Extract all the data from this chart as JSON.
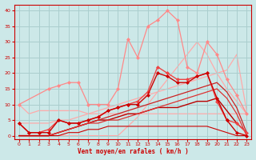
{
  "background_color": "#cce8e8",
  "grid_color": "#aacece",
  "xlabel": "Vent moyen/en rafales ( km/h )",
  "xlabel_color": "#cc0000",
  "tick_color": "#cc0000",
  "ylim": [
    -1,
    42
  ],
  "xlim": [
    -0.5,
    23.5
  ],
  "yticks": [
    0,
    5,
    10,
    15,
    20,
    25,
    30,
    35,
    40
  ],
  "xticks": [
    0,
    1,
    2,
    3,
    4,
    5,
    6,
    7,
    8,
    9,
    10,
    11,
    12,
    13,
    14,
    15,
    16,
    17,
    18,
    19,
    20,
    21,
    22,
    23
  ],
  "series": [
    {
      "x": [
        0,
        1,
        2,
        3,
        4,
        5,
        6,
        7,
        8,
        9,
        10,
        11,
        12,
        13,
        14,
        15,
        16,
        17,
        18,
        19,
        20,
        21,
        22,
        23
      ],
      "y": [
        10,
        7,
        8,
        8,
        8,
        8,
        8,
        7,
        7,
        7,
        7,
        7,
        7,
        7,
        7,
        7,
        7,
        7,
        7,
        7,
        7,
        7,
        7,
        7
      ],
      "color": "#ffaaaa",
      "marker": null,
      "linewidth": 0.9,
      "zorder": 1
    },
    {
      "x": [
        0,
        1,
        2,
        3,
        4,
        5,
        6,
        7,
        8,
        9,
        10,
        11,
        12,
        13,
        14,
        15,
        16,
        17,
        18,
        19,
        20,
        21,
        22,
        23
      ],
      "y": [
        4,
        4,
        4,
        4,
        5,
        5,
        6,
        7,
        8,
        9,
        10,
        11,
        12,
        13,
        14,
        15,
        16,
        17,
        18,
        19,
        20,
        21,
        26,
        8
      ],
      "color": "#ffaaaa",
      "marker": null,
      "linewidth": 0.9,
      "zorder": 1
    },
    {
      "x": [
        0,
        3,
        4,
        5,
        6,
        7,
        8,
        9,
        10,
        11,
        12,
        13,
        14,
        15,
        16,
        17,
        18,
        19,
        20,
        21,
        22,
        23
      ],
      "y": [
        0,
        0,
        0,
        0,
        0,
        0,
        0,
        0,
        0,
        3,
        6,
        10,
        14,
        18,
        22,
        26,
        30,
        26,
        20,
        15,
        11,
        7
      ],
      "color": "#ffaaaa",
      "marker": null,
      "linewidth": 0.9,
      "zorder": 1
    },
    {
      "x": [
        0,
        3,
        4,
        5,
        6,
        7,
        8,
        9,
        10,
        11,
        12,
        13,
        14,
        15,
        16,
        17,
        18,
        19,
        20,
        21,
        22,
        23
      ],
      "y": [
        10,
        15,
        16,
        17,
        17,
        10,
        10,
        10,
        15,
        31,
        25,
        35,
        37,
        40,
        37,
        22,
        20,
        30,
        26,
        18,
        13,
        7
      ],
      "color": "#ff8888",
      "marker": "D",
      "markersize": 2.0,
      "linewidth": 0.9,
      "zorder": 3
    },
    {
      "x": [
        0,
        1,
        2,
        3,
        4,
        5,
        6,
        7,
        8,
        9,
        10,
        11,
        12,
        13,
        14,
        15,
        16,
        17,
        18,
        19,
        20,
        21,
        22,
        23
      ],
      "y": [
        4,
        1,
        1,
        2,
        5,
        4,
        4,
        5,
        6,
        8,
        9,
        10,
        11,
        14,
        22,
        20,
        18,
        18,
        19,
        20,
        11,
        5,
        4,
        1
      ],
      "color": "#ee4444",
      "marker": "D",
      "markersize": 2.0,
      "linewidth": 1.0,
      "zorder": 4
    },
    {
      "x": [
        0,
        1,
        2,
        3,
        4,
        5,
        6,
        7,
        8,
        9,
        10,
        11,
        12,
        13,
        14,
        15,
        16,
        17,
        18,
        19,
        20,
        21,
        22,
        23
      ],
      "y": [
        4,
        1,
        1,
        1,
        5,
        4,
        4,
        5,
        6,
        8,
        9,
        10,
        10,
        13,
        20,
        19,
        17,
        17,
        19,
        20,
        12,
        5,
        1,
        0
      ],
      "color": "#cc0000",
      "marker": "D",
      "markersize": 2.0,
      "linewidth": 1.0,
      "zorder": 4
    },
    {
      "x": [
        0,
        1,
        2,
        3,
        4,
        5,
        6,
        7,
        8,
        9,
        10,
        11,
        12,
        13,
        14,
        15,
        16,
        17,
        18,
        19,
        20,
        21,
        22,
        23
      ],
      "y": [
        0,
        0,
        0,
        0,
        1,
        2,
        3,
        4,
        5,
        5,
        6,
        7,
        7,
        8,
        9,
        9,
        9,
        10,
        11,
        11,
        12,
        8,
        4,
        1
      ],
      "color": "#bb0000",
      "marker": null,
      "linewidth": 1.0,
      "zorder": 2
    },
    {
      "x": [
        0,
        1,
        2,
        3,
        4,
        5,
        6,
        7,
        8,
        9,
        10,
        11,
        12,
        13,
        14,
        15,
        16,
        17,
        18,
        19,
        20,
        21,
        22,
        23
      ],
      "y": [
        0,
        0,
        0,
        0,
        1,
        2,
        3,
        4,
        5,
        6,
        7,
        8,
        9,
        10,
        11,
        12,
        13,
        14,
        15,
        16,
        17,
        14,
        9,
        1
      ],
      "color": "#cc2222",
      "marker": null,
      "linewidth": 0.9,
      "zorder": 2
    },
    {
      "x": [
        0,
        1,
        2,
        3,
        4,
        5,
        6,
        7,
        8,
        9,
        10,
        11,
        12,
        13,
        14,
        15,
        16,
        17,
        18,
        19,
        20,
        21,
        22,
        23
      ],
      "y": [
        0,
        0,
        0,
        0,
        1,
        2,
        3,
        4,
        4,
        5,
        5,
        6,
        7,
        8,
        9,
        10,
        11,
        12,
        13,
        14,
        15,
        12,
        7,
        0
      ],
      "color": "#dd3333",
      "marker": null,
      "linewidth": 0.9,
      "zorder": 2
    },
    {
      "x": [
        0,
        1,
        2,
        3,
        4,
        5,
        6,
        7,
        8,
        9,
        10,
        11,
        12,
        13,
        14,
        15,
        16,
        17,
        18,
        19,
        20,
        21,
        22,
        23
      ],
      "y": [
        0,
        0,
        0,
        0,
        0,
        1,
        1,
        2,
        2,
        3,
        3,
        3,
        3,
        3,
        3,
        3,
        3,
        3,
        3,
        3,
        2,
        1,
        0,
        0
      ],
      "color": "#cc0000",
      "marker": null,
      "linewidth": 0.8,
      "zorder": 2
    }
  ]
}
